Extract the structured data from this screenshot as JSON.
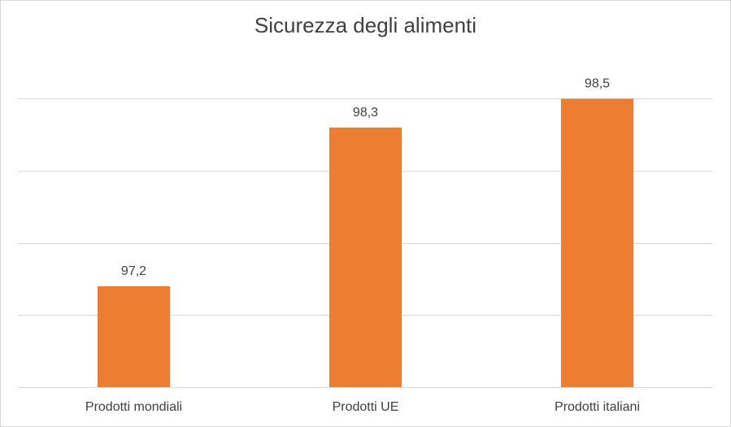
{
  "chart_data": {
    "type": "bar",
    "title": "Sicurezza degli alimenti",
    "categories": [
      "Prodotti mondiali",
      "Prodotti UE",
      "Prodotti italiani"
    ],
    "values": [
      97.2,
      98.3,
      98.5
    ],
    "data_labels": [
      "97,2",
      "98,3",
      "98,5"
    ],
    "ylim": [
      96.5,
      98.75
    ],
    "grid": true,
    "color": "#ED7D31"
  }
}
